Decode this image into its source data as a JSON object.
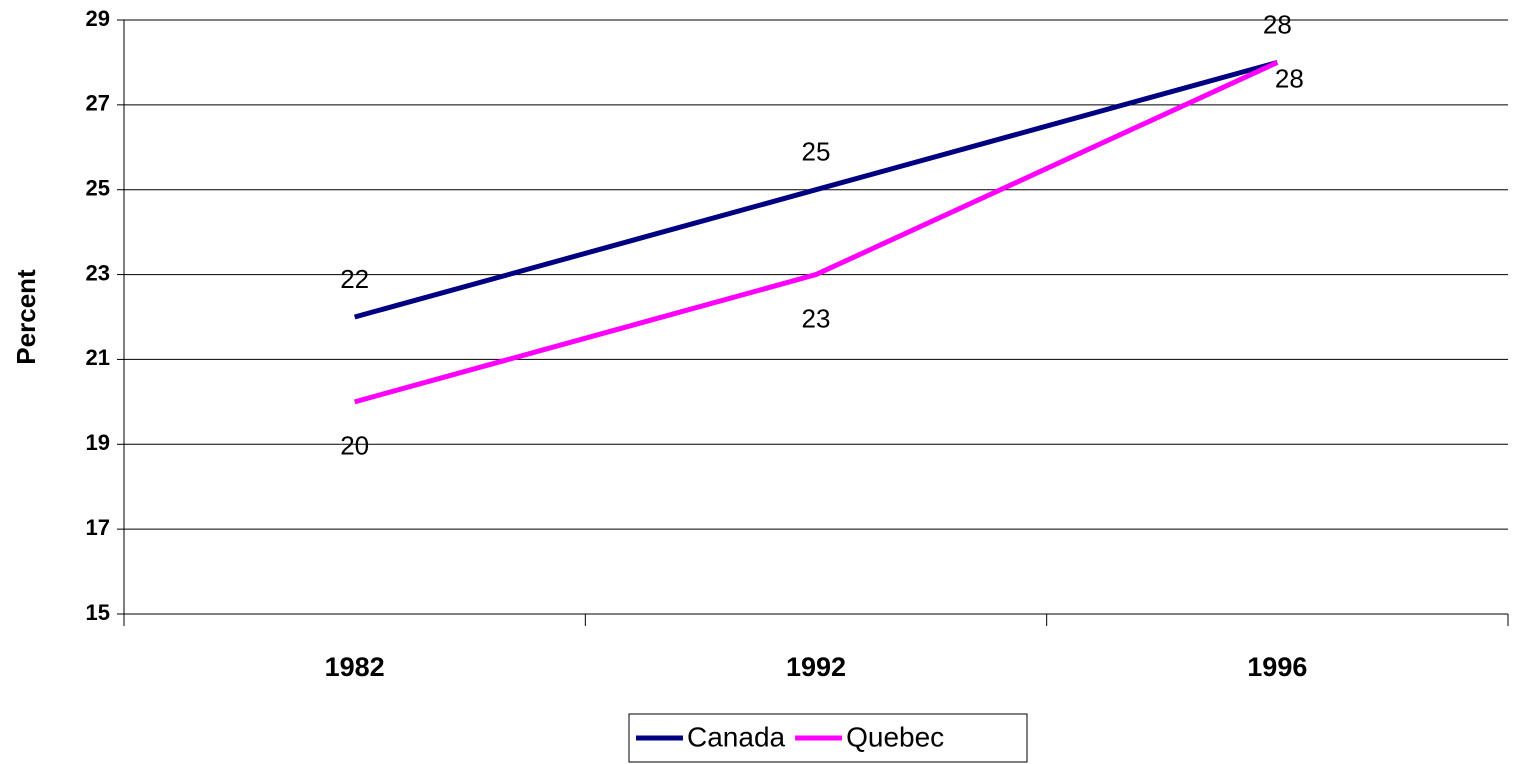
{
  "chart_data": {
    "type": "line",
    "ylabel": "Percent",
    "categories": [
      "1982",
      "1992",
      "1996"
    ],
    "series": [
      {
        "name": "Canada",
        "color": "#000080",
        "values": [
          22,
          25,
          28
        ]
      },
      {
        "name": "Quebec",
        "color": "#ff00ff",
        "values": [
          20,
          23,
          28
        ]
      }
    ],
    "ylim": [
      15,
      29
    ],
    "yticks": [
      15,
      17,
      19,
      21,
      23,
      25,
      27,
      29
    ],
    "grid": true,
    "legend": "bottom"
  }
}
